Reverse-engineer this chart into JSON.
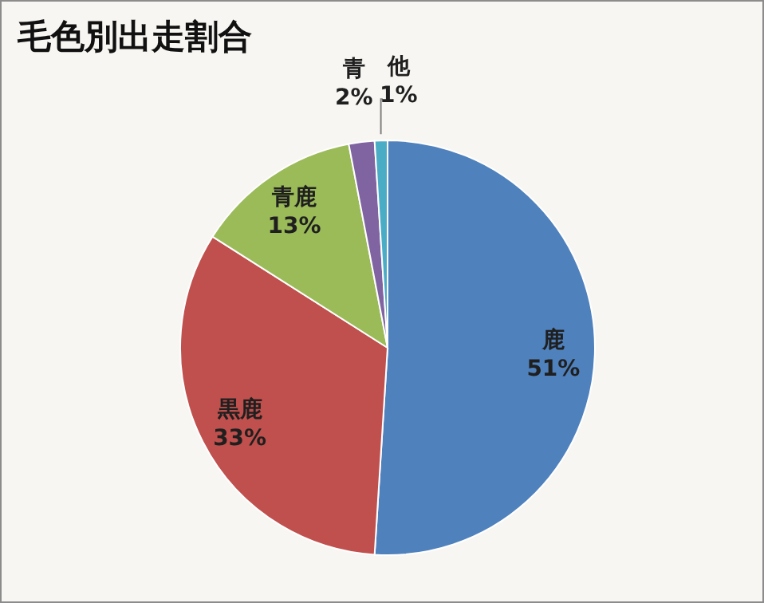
{
  "chart_data": {
    "type": "pie",
    "title": "毛色別出走割合",
    "categories": [
      "鹿",
      "黒鹿",
      "青鹿",
      "青",
      "他"
    ],
    "values": [
      51,
      33,
      13,
      2,
      1
    ],
    "value_labels": [
      "51%",
      "33%",
      "13%",
      "2%",
      "1%"
    ],
    "colors": [
      "#4f81bd",
      "#c0504d",
      "#9bbb59",
      "#8064a2",
      "#4bacc6"
    ]
  }
}
